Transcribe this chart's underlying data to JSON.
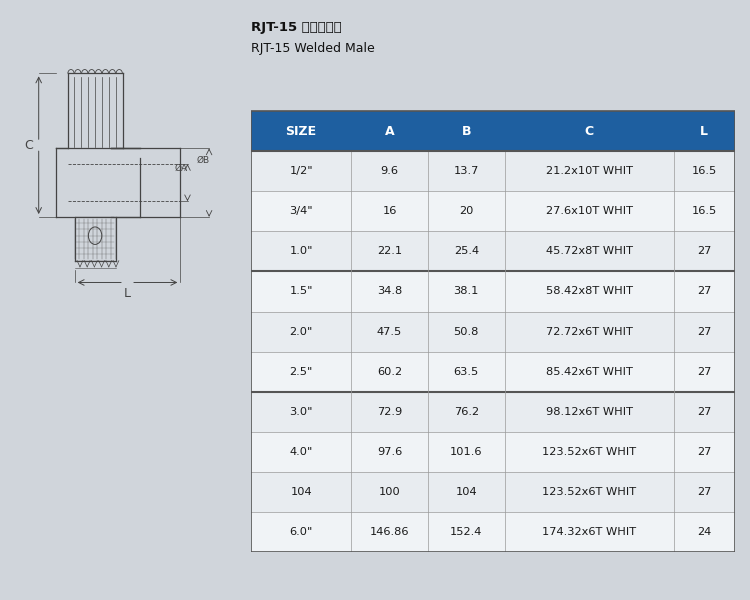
{
  "title_zh": "RJT-15 外螺紋接頭",
  "title_en": "RJT-15 Welded Male",
  "headers": [
    "SIZE",
    "A",
    "B",
    "C",
    "L"
  ],
  "rows": [
    [
      "1/2\"",
      "9.6",
      "13.7",
      "21.2x10T WHIT",
      "16.5"
    ],
    [
      "3/4\"",
      "16",
      "20",
      "27.6x10T WHIT",
      "16.5"
    ],
    [
      "1.0\"",
      "22.1",
      "25.4",
      "45.72x8T WHIT",
      "27"
    ],
    [
      "1.5\"",
      "34.8",
      "38.1",
      "58.42x8T WHIT",
      "27"
    ],
    [
      "2.0\"",
      "47.5",
      "50.8",
      "72.72x6T WHIT",
      "27"
    ],
    [
      "2.5\"",
      "60.2",
      "63.5",
      "85.42x6T WHIT",
      "27"
    ],
    [
      "3.0\"",
      "72.9",
      "76.2",
      "98.12x6T WHIT",
      "27"
    ],
    [
      "4.0\"",
      "97.6",
      "101.6",
      "123.52x6T WHIT",
      "27"
    ],
    [
      "104",
      "100",
      "104",
      "123.52x6T WHIT",
      "27"
    ],
    [
      "6.0\"",
      "146.86",
      "152.4",
      "174.32x6T WHIT",
      "24"
    ]
  ],
  "header_bg": "#1e5fa0",
  "header_text_color": "#ffffff",
  "row_bg_even": "#e8ecf0",
  "row_bg_odd": "#f0f3f6",
  "border_color": "#999999",
  "thick_border_color": "#555555",
  "bg_color": "#d0d5db",
  "group_separators_after": [
    2,
    5
  ],
  "col_props": [
    0.13,
    0.1,
    0.1,
    0.22,
    0.08
  ]
}
